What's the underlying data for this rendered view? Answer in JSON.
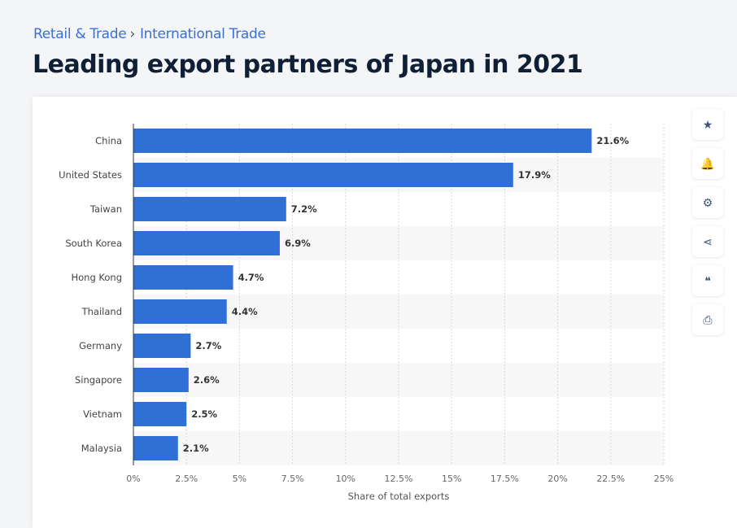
{
  "breadcrumb": {
    "items": [
      "Retail & Trade",
      "International Trade"
    ],
    "separator": "›"
  },
  "title": "Leading export partners of Japan in 2021",
  "side_buttons": [
    {
      "name": "favorite",
      "icon": "star-icon",
      "glyph": "★"
    },
    {
      "name": "notification",
      "icon": "bell-icon",
      "glyph": "🔔"
    },
    {
      "name": "settings",
      "icon": "gear-icon",
      "glyph": "⚙"
    },
    {
      "name": "share",
      "icon": "share-icon",
      "glyph": "⋖"
    },
    {
      "name": "cite",
      "icon": "quote-icon",
      "glyph": "❝"
    },
    {
      "name": "print",
      "icon": "printer-icon",
      "glyph": "⎙"
    }
  ],
  "colors": {
    "bar": "#2f6fd6",
    "stripe": "#f7f7f7",
    "text": "#444444"
  },
  "chart_data": {
    "type": "bar",
    "orientation": "horizontal",
    "title": "Leading export partners of Japan in 2021",
    "categories": [
      "China",
      "United States",
      "Taiwan",
      "South Korea",
      "Hong Kong",
      "Thailand",
      "Germany",
      "Singapore",
      "Vietnam",
      "Malaysia"
    ],
    "values": [
      21.6,
      17.9,
      7.2,
      6.9,
      4.7,
      4.4,
      2.7,
      2.6,
      2.5,
      2.1
    ],
    "data_labels": [
      "21.6%",
      "17.9%",
      "7.2%",
      "6.9%",
      "4.7%",
      "4.4%",
      "2.7%",
      "2.6%",
      "2.5%",
      "2.1%"
    ],
    "xlabel": "Share of total exports",
    "ylabel": "",
    "xlim": [
      0,
      25
    ],
    "xticks": [
      0,
      2.5,
      5,
      7.5,
      10,
      12.5,
      15,
      17.5,
      20,
      22.5,
      25
    ],
    "xtick_labels": [
      "0%",
      "2.5%",
      "5%",
      "7.5%",
      "10%",
      "12.5%",
      "15%",
      "17.5%",
      "20%",
      "22.5%",
      "25%"
    ],
    "grid": true
  }
}
